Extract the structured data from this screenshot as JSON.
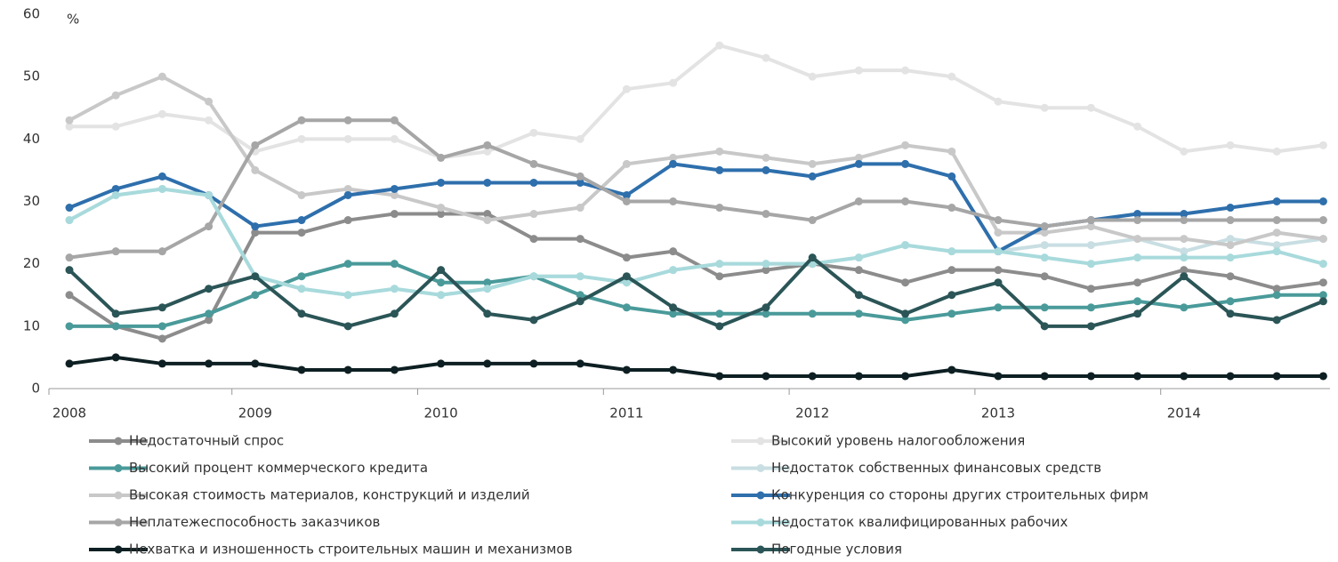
{
  "chart_data": {
    "type": "line",
    "y_label": "%",
    "categories": [
      "2008",
      null,
      null,
      null,
      "2009",
      null,
      null,
      null,
      "2010",
      null,
      null,
      null,
      "2011",
      null,
      null,
      null,
      "2012",
      null,
      null,
      null,
      "2013",
      null,
      null,
      null,
      "2014",
      null,
      null,
      null
    ],
    "ylim": [
      0,
      60
    ],
    "yticks": [
      0,
      10,
      20,
      30,
      40,
      50,
      60
    ],
    "grid": false,
    "legend": "bottom",
    "series": [
      {
        "name": "Недостаточный спрос",
        "color": "#8c8c8c",
        "values": [
          15,
          10,
          8,
          11,
          25,
          25,
          27,
          28,
          28,
          28,
          24,
          24,
          21,
          22,
          18,
          19,
          20,
          19,
          17,
          19,
          19,
          18,
          16,
          17,
          19,
          18,
          16,
          17
        ]
      },
      {
        "name": "Высокий уровень налогообложения",
        "color": "#e3e3e3",
        "values": [
          42,
          42,
          44,
          43,
          38,
          40,
          40,
          40,
          37,
          38,
          41,
          40,
          48,
          49,
          55,
          53,
          50,
          51,
          51,
          50,
          46,
          45,
          45,
          42,
          38,
          39,
          38,
          39
        ]
      },
      {
        "name": "Высокий процент коммерческого кредита",
        "color": "#4a9a9a",
        "values": [
          10,
          10,
          10,
          12,
          15,
          18,
          20,
          20,
          17,
          17,
          18,
          15,
          13,
          12,
          12,
          12,
          12,
          12,
          11,
          12,
          13,
          13,
          13,
          14,
          13,
          14,
          15,
          15
        ]
      },
      {
        "name": "Недостаток собственных финансовых средств",
        "color": "#c8dee2",
        "values": [
          27,
          31,
          32,
          31,
          18,
          16,
          15,
          16,
          15,
          16,
          18,
          18,
          17,
          19,
          20,
          20,
          20,
          21,
          23,
          22,
          22,
          23,
          23,
          24,
          22,
          24,
          23,
          24
        ]
      },
      {
        "name": "Высокая стоимость материалов, конструкций и изделий",
        "color": "#c8c8c8",
        "values": [
          43,
          47,
          50,
          46,
          35,
          31,
          32,
          31,
          29,
          27,
          28,
          29,
          36,
          37,
          38,
          37,
          36,
          37,
          39,
          38,
          25,
          25,
          26,
          24,
          24,
          23,
          25,
          24
        ]
      },
      {
        "name": "Конкуренция со стороны других строительных фирм",
        "color": "#2e6fac",
        "values": [
          29,
          32,
          34,
          31,
          26,
          27,
          31,
          32,
          33,
          33,
          33,
          33,
          31,
          36,
          35,
          35,
          34,
          36,
          36,
          34,
          22,
          26,
          27,
          28,
          28,
          29,
          30,
          30
        ]
      },
      {
        "name": "Неплатежеспособность заказчиков",
        "color": "#a6a6a6",
        "values": [
          21,
          22,
          22,
          26,
          39,
          43,
          43,
          43,
          37,
          39,
          36,
          34,
          30,
          30,
          29,
          28,
          27,
          30,
          30,
          29,
          27,
          26,
          27,
          27,
          27,
          27,
          27,
          27
        ]
      },
      {
        "name": "Недостаток квалифицированных рабочих",
        "color": "#a8dadc",
        "values": [
          27,
          31,
          32,
          31,
          18,
          16,
          15,
          16,
          15,
          16,
          18,
          18,
          17,
          19,
          20,
          20,
          20,
          21,
          23,
          22,
          22,
          21,
          20,
          21,
          21,
          21,
          22,
          20
        ]
      },
      {
        "name": "Нехватка и изношенность строительных машин и механизмов",
        "color": "#0d1f22",
        "values": [
          4,
          5,
          4,
          4,
          4,
          3,
          3,
          3,
          4,
          4,
          4,
          4,
          3,
          3,
          2,
          2,
          2,
          2,
          2,
          3,
          2,
          2,
          2,
          2,
          2,
          2,
          2,
          2
        ]
      },
      {
        "name": "Погодные условия",
        "color": "#2b5557",
        "values": [
          19,
          12,
          13,
          16,
          18,
          12,
          10,
          12,
          19,
          12,
          11,
          14,
          18,
          13,
          10,
          13,
          21,
          15,
          12,
          15,
          17,
          10,
          10,
          12,
          18,
          12,
          11,
          14
        ]
      }
    ]
  }
}
